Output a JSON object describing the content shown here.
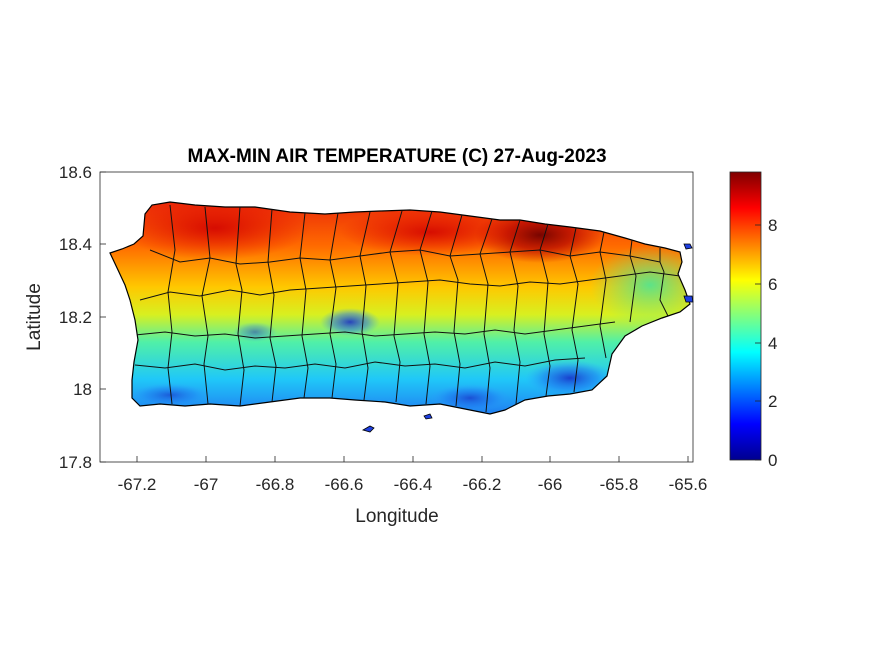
{
  "chart": {
    "title": "MAX-MIN AIR TEMPERATURE (C) 27-Aug-2023",
    "xlabel": "Longitude",
    "ylabel": "Latitude",
    "xticks": [
      "-67.2",
      "-67",
      "-66.8",
      "-66.6",
      "-66.4",
      "-66.2",
      "-66",
      "-65.8",
      "-65.6"
    ],
    "yticks": [
      "17.8",
      "18",
      "18.2",
      "18.4",
      "18.6"
    ],
    "cbticks": [
      "0",
      "2",
      "4",
      "6",
      "8"
    ]
  },
  "chart_data": {
    "type": "heatmap",
    "title": "MAX-MIN AIR TEMPERATURE (C) 27-Aug-2023",
    "xlabel": "Longitude",
    "ylabel": "Latitude",
    "xlim": [
      -67.3,
      -65.58
    ],
    "ylim": [
      17.8,
      18.6
    ],
    "xticks": [
      -67.2,
      -67,
      -66.8,
      -66.6,
      -66.4,
      -66.2,
      -66,
      -65.8,
      -65.6
    ],
    "yticks": [
      17.8,
      18,
      18.2,
      18.4,
      18.6
    ],
    "colorbar": {
      "colormap": "jet",
      "range": [
        0,
        9.8
      ],
      "ticks": [
        0,
        2,
        4,
        6,
        8
      ]
    },
    "grid": false,
    "features": {
      "warmest_region": "north coast near -66.05, 18.45 (~9.5 C)",
      "coolest_region": "south coast and central ridge near -66.6, 18.18 (~2 C)"
    }
  },
  "colors": {
    "jet_low": "#00008f",
    "jet_high": "#800000",
    "axis": "#262626",
    "boundary": "#000000"
  }
}
